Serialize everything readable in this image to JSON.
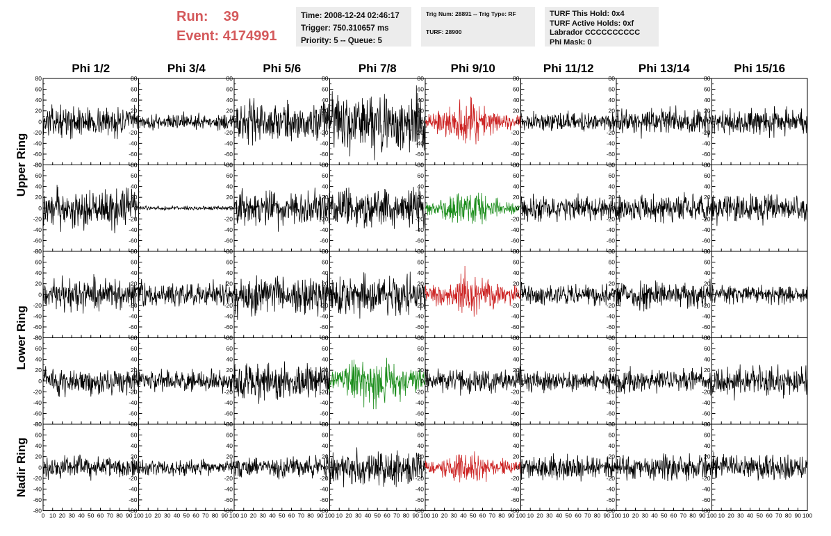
{
  "header": {
    "run_label": "Run:",
    "run_value": "39",
    "event_label": "Event:",
    "event_value": "4174991",
    "time": "Time: 2008-12-24 02:46:17",
    "trigger": "Trigger: 750.310657 ms",
    "priority": "Priority: 5 -- Queue: 5",
    "trig_num": "Trig Num: 28891 -- Trig Type: RF",
    "turf": "TURF: 28900",
    "turf_this_hold": "TURF This Hold: 0x4",
    "turf_active_holds": "TURF Active Holds: 0xf",
    "labrador": "Labrador CCCCCCCCCC",
    "phi_mask": "Phi Mask: 0"
  },
  "columns": [
    "Phi 1/2",
    "Phi 3/4",
    "Phi 5/6",
    "Phi 7/8",
    "Phi 9/10",
    "Phi 11/12",
    "Phi 13/14",
    "Phi 15/16"
  ],
  "ring_labels": [
    "Upper Ring",
    "Lower Ring",
    "Nadir Ring"
  ],
  "colors": {
    "red_trace": "#cc2222",
    "green_trace": "#1a8c1a",
    "black_trace": "#000000",
    "run_text": "#d4595b"
  },
  "chart_data": {
    "type": "line",
    "xlim": [
      0,
      100
    ],
    "ylim": [
      -80,
      80
    ],
    "x_ticks": [
      0,
      10,
      20,
      30,
      40,
      50,
      60,
      70,
      80,
      90,
      100
    ],
    "x_tick_labels": [
      "0",
      "10",
      "20",
      "30",
      "40",
      "50",
      "60",
      "70",
      "80",
      "90",
      "100"
    ],
    "y_ticks": [
      80,
      60,
      40,
      20,
      0,
      -20,
      -40,
      -60,
      -80
    ],
    "y_tick_labels": [
      "80",
      "60",
      "40",
      "20",
      "0",
      "-20",
      "-40",
      "-60",
      "-80"
    ],
    "panels": [
      {
        "row": 0,
        "col": 0,
        "color": "black",
        "amplitude": 22
      },
      {
        "row": 0,
        "col": 1,
        "color": "black",
        "amplitude": 12
      },
      {
        "row": 0,
        "col": 2,
        "color": "black",
        "amplitude": 30
      },
      {
        "row": 0,
        "col": 3,
        "color": "black",
        "amplitude": 45
      },
      {
        "row": 0,
        "col": 4,
        "color": "red",
        "amplitude": 35
      },
      {
        "row": 0,
        "col": 5,
        "color": "black",
        "amplitude": 14
      },
      {
        "row": 0,
        "col": 6,
        "color": "black",
        "amplitude": 20
      },
      {
        "row": 0,
        "col": 7,
        "color": "black",
        "amplitude": 20
      },
      {
        "row": 1,
        "col": 0,
        "color": "black",
        "amplitude": 30
      },
      {
        "row": 1,
        "col": 1,
        "color": "black",
        "amplitude": 3
      },
      {
        "row": 1,
        "col": 2,
        "color": "black",
        "amplitude": 28
      },
      {
        "row": 1,
        "col": 3,
        "color": "black",
        "amplitude": 30
      },
      {
        "row": 1,
        "col": 4,
        "color": "green",
        "amplitude": 28
      },
      {
        "row": 1,
        "col": 5,
        "color": "black",
        "amplitude": 18
      },
      {
        "row": 1,
        "col": 6,
        "color": "black",
        "amplitude": 20
      },
      {
        "row": 1,
        "col": 7,
        "color": "black",
        "amplitude": 22
      },
      {
        "row": 2,
        "col": 0,
        "color": "black",
        "amplitude": 24
      },
      {
        "row": 2,
        "col": 1,
        "color": "black",
        "amplitude": 18
      },
      {
        "row": 2,
        "col": 2,
        "color": "black",
        "amplitude": 30
      },
      {
        "row": 2,
        "col": 3,
        "color": "black",
        "amplitude": 30
      },
      {
        "row": 2,
        "col": 4,
        "color": "red",
        "amplitude": 35
      },
      {
        "row": 2,
        "col": 5,
        "color": "black",
        "amplitude": 16
      },
      {
        "row": 2,
        "col": 6,
        "color": "black",
        "amplitude": 20
      },
      {
        "row": 2,
        "col": 7,
        "color": "black",
        "amplitude": 14
      },
      {
        "row": 3,
        "col": 0,
        "color": "black",
        "amplitude": 20
      },
      {
        "row": 3,
        "col": 1,
        "color": "black",
        "amplitude": 16
      },
      {
        "row": 3,
        "col": 2,
        "color": "black",
        "amplitude": 30
      },
      {
        "row": 3,
        "col": 3,
        "color": "green",
        "amplitude": 45
      },
      {
        "row": 3,
        "col": 4,
        "color": "black",
        "amplitude": 18
      },
      {
        "row": 3,
        "col": 5,
        "color": "black",
        "amplitude": 16
      },
      {
        "row": 3,
        "col": 6,
        "color": "black",
        "amplitude": 18
      },
      {
        "row": 3,
        "col": 7,
        "color": "black",
        "amplitude": 22
      },
      {
        "row": 4,
        "col": 0,
        "color": "black",
        "amplitude": 16
      },
      {
        "row": 4,
        "col": 1,
        "color": "black",
        "amplitude": 12
      },
      {
        "row": 4,
        "col": 2,
        "color": "black",
        "amplitude": 16
      },
      {
        "row": 4,
        "col": 3,
        "color": "black",
        "amplitude": 28
      },
      {
        "row": 4,
        "col": 4,
        "color": "red",
        "amplitude": 26
      },
      {
        "row": 4,
        "col": 5,
        "color": "black",
        "amplitude": 18
      },
      {
        "row": 4,
        "col": 6,
        "color": "black",
        "amplitude": 18
      },
      {
        "row": 4,
        "col": 7,
        "color": "black",
        "amplitude": 18
      }
    ]
  }
}
